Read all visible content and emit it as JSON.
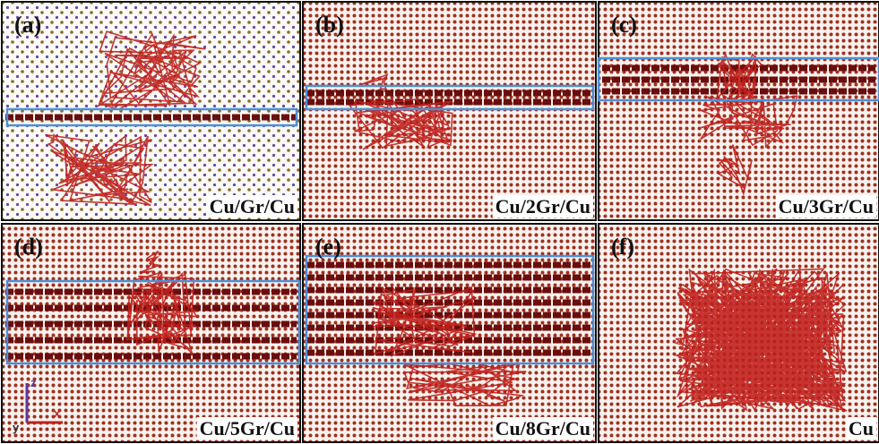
{
  "panels": [
    {
      "label": "(a)",
      "caption": "Cu/Gr/Cu"
    },
    {
      "label": "(b)",
      "caption": "Cu/2Gr/Cu"
    },
    {
      "label": "(c)",
      "caption": "Cu/3Gr/Cu"
    },
    {
      "label": "(d)",
      "caption": "Cu/5Gr/Cu"
    },
    {
      "label": "(e)",
      "caption": "Cu/8Gr/Cu"
    },
    {
      "label": "(f)",
      "caption": "Cu"
    }
  ],
  "axes": {
    "z": "z",
    "x": "x",
    "y": "y"
  }
}
